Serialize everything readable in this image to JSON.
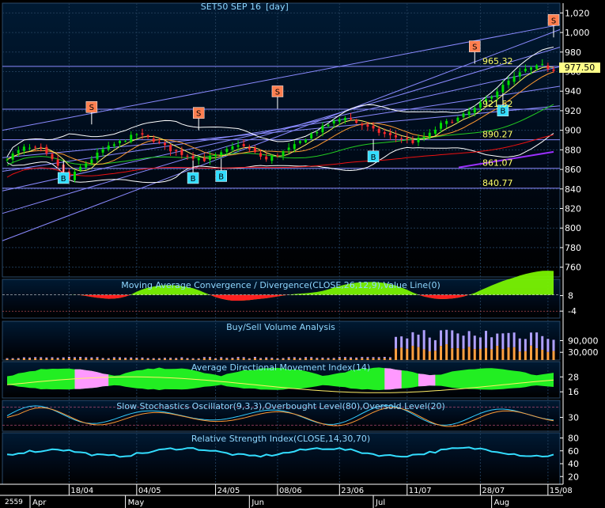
{
  "chart_data": {
    "type": "line",
    "title": "SET50 SEP 16",
    "interval": "[day]",
    "last_price": "977.50",
    "price_axis": {
      "ticks": [
        760,
        780,
        800,
        820,
        840,
        860,
        880,
        900,
        920,
        940,
        960,
        980,
        1000,
        1020
      ],
      "ylim": [
        750,
        1030
      ]
    },
    "level_labels": [
      "965.32",
      "921.52",
      "890.27",
      "861.07",
      "840.77"
    ],
    "signals": [
      {
        "label": "S",
        "type": "sell",
        "date": "2016-04-22",
        "price": 906
      },
      {
        "label": "S",
        "type": "sell",
        "date": "2016-05-19",
        "price": 900
      },
      {
        "label": "S",
        "type": "sell",
        "date": "2016-06-08",
        "price": 922
      },
      {
        "label": "S",
        "type": "sell",
        "date": "2016-07-27",
        "price": 968
      },
      {
        "label": "S",
        "type": "sell",
        "date": "2016-08-16",
        "price": 995
      },
      {
        "label": "B",
        "type": "buy",
        "date": "2016-04-15",
        "price": 869
      },
      {
        "label": "B",
        "type": "buy",
        "date": "2016-05-18",
        "price": 869
      },
      {
        "label": "B",
        "type": "buy",
        "date": "2016-05-25",
        "price": 871
      },
      {
        "label": "B",
        "type": "buy",
        "date": "2016-07-01",
        "price": 891
      },
      {
        "label": "B",
        "type": "buy",
        "date": "2016-08-03",
        "price": 938
      }
    ],
    "x_axis": {
      "date_labels": [
        "18/04",
        "04/05",
        "24/05",
        "08/06",
        "23/06",
        "11/07",
        "28/07",
        "15/08"
      ],
      "year_label": "2559",
      "month_labels": [
        "Apr",
        "May",
        "Jun",
        "Jul",
        "Aug"
      ]
    },
    "panels": [
      {
        "name": "Moving Average Convergence / Divergence(CLOSE,26,12,9),Value Line(0)",
        "ticks": [
          "8",
          "-4"
        ]
      },
      {
        "name": "Buy/Sell Volume Analysis",
        "ticks": [
          "90,000",
          "30,000"
        ]
      },
      {
        "name": "Average Directional Movement Index(14)",
        "ticks": [
          "28",
          "16"
        ]
      },
      {
        "name": "Slow Stochastics Oscillator(9,3,3),Overbought Level(80),Oversold Level(20)",
        "ticks": [
          "30"
        ]
      },
      {
        "name": "Relative Strength Index(CLOSE,14,30,70)",
        "ticks": [
          "80",
          "60",
          "40",
          "20"
        ]
      }
    ],
    "grid": true
  },
  "colors": {
    "background": "#000814",
    "grid": "#1e3a56",
    "title": "#8fd7ff",
    "axis_text": "#ffffff",
    "level_text": "#ffff66",
    "last_price_bg": "#ffff88",
    "sell_box": "#ff7f50",
    "buy_box": "#33ddff",
    "channel": "#8a8aff",
    "up_candle": "#00dd00",
    "down_candle": "#ff2a2a",
    "ma_short": "#ffee66",
    "ma_mid": "#ff9a30",
    "ma_long": "#22cc22",
    "ma_longest": "#ee1111",
    "bollinger": "#ffffff",
    "macd_pos": "#7fff00",
    "macd_neg": "#ff2020",
    "vol_buy": "#ffa040",
    "vol_sell": "#b0a0ff",
    "adx_fill": "#22ee22",
    "adx_alt": "#ff99ff",
    "stoch_k": "#33ccff",
    "stoch_d": "#ff9933",
    "rsi": "#33ddff"
  }
}
